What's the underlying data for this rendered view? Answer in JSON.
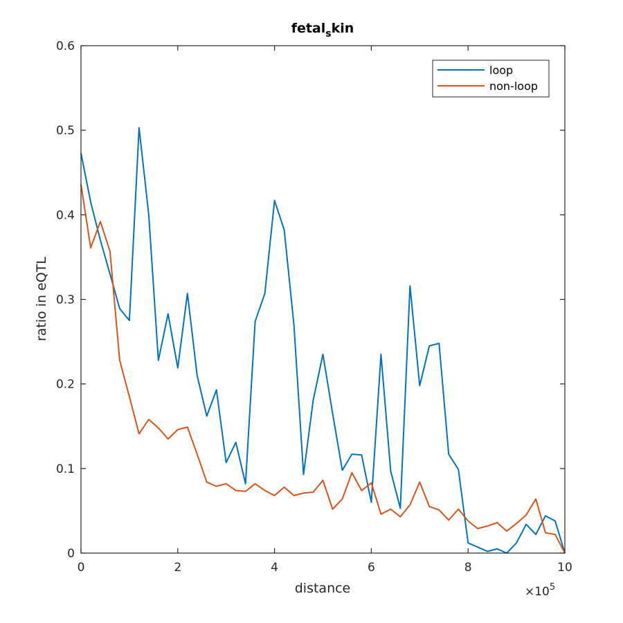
{
  "chart_data": {
    "type": "line",
    "title": "fetal_skin",
    "xlabel": "distance",
    "ylabel": "ratio in eQTL",
    "x_multiplier_label": "×10",
    "x_multiplier_exponent": "5",
    "xlim": [
      0,
      10
    ],
    "ylim": [
      0,
      0.6
    ],
    "xticks": [
      0,
      2,
      4,
      6,
      8,
      10
    ],
    "yticks": [
      0,
      0.1,
      0.2,
      0.3,
      0.4,
      0.5,
      0.6
    ],
    "xtick_labels": [
      "0",
      "2",
      "4",
      "6",
      "8",
      "10"
    ],
    "ytick_labels": [
      "0",
      "0.1",
      "0.2",
      "0.3",
      "0.4",
      "0.5",
      "0.6"
    ],
    "grid": false,
    "legend_position": "top-right",
    "x": [
      0,
      0.2,
      0.4,
      0.6,
      0.8,
      1.0,
      1.2,
      1.4,
      1.6,
      1.8,
      2.0,
      2.2,
      2.4,
      2.6,
      2.8,
      3.0,
      3.2,
      3.4,
      3.6,
      3.8,
      4.0,
      4.2,
      4.4,
      4.6,
      4.8,
      5.0,
      5.2,
      5.4,
      5.6,
      5.8,
      6.0,
      6.2,
      6.4,
      6.6,
      6.8,
      7.0,
      7.2,
      7.4,
      7.6,
      7.8,
      8.0,
      8.2,
      8.4,
      8.6,
      8.8,
      9.0,
      9.2,
      9.4,
      9.6,
      9.8,
      10.0
    ],
    "series": [
      {
        "name": "loop",
        "color": "#0072bd",
        "values": [
          0.473,
          0.415,
          0.37,
          0.33,
          0.289,
          0.275,
          0.503,
          0.4,
          0.228,
          0.283,
          0.219,
          0.307,
          0.21,
          0.162,
          0.193,
          0.107,
          0.131,
          0.082,
          0.274,
          0.307,
          0.417,
          0.382,
          0.27,
          0.093,
          0.181,
          0.235,
          0.165,
          0.098,
          0.117,
          0.116,
          0.06,
          0.235,
          0.097,
          0.053,
          0.316,
          0.198,
          0.245,
          0.248,
          0.117,
          0.099,
          0.012,
          0.007,
          0.002,
          0.005,
          0.0,
          0.012,
          0.034,
          0.022,
          0.044,
          0.038,
          0.0
        ]
      },
      {
        "name": "non-loop",
        "color": "#d95319",
        "values": [
          0.436,
          0.361,
          0.392,
          0.357,
          0.228,
          0.185,
          0.141,
          0.158,
          0.148,
          0.135,
          0.146,
          0.149,
          0.117,
          0.084,
          0.079,
          0.082,
          0.074,
          0.073,
          0.082,
          0.074,
          0.068,
          0.078,
          0.068,
          0.071,
          0.072,
          0.086,
          0.052,
          0.064,
          0.095,
          0.074,
          0.083,
          0.046,
          0.052,
          0.043,
          0.057,
          0.084,
          0.055,
          0.051,
          0.039,
          0.052,
          0.038,
          0.029,
          0.032,
          0.036,
          0.026,
          0.035,
          0.045,
          0.064,
          0.024,
          0.022,
          0.0
        ]
      }
    ]
  }
}
